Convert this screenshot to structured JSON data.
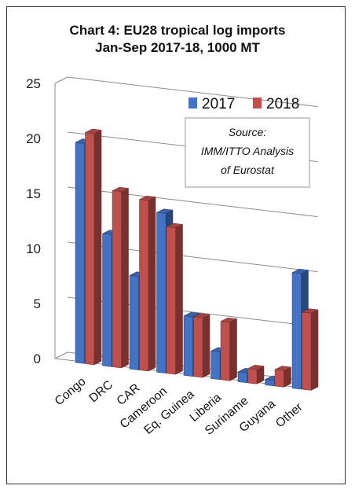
{
  "chart_data": {
    "type": "bar",
    "title_lines": [
      "Chart 4: EU28 tropical log imports",
      "Jan-Sep 2017-18, 1000 MT"
    ],
    "categories": [
      "Congo",
      "DRC",
      "CAR",
      "Cameroon",
      "Eq. Guinea",
      "Liberia",
      "Suriname",
      "Guyana",
      "Other"
    ],
    "series": [
      {
        "name": "2017",
        "values": [
          20.0,
          12.0,
          8.5,
          14.5,
          5.4,
          2.5,
          0.9,
          0.5,
          10.5
        ],
        "color": "#4472c4"
      },
      {
        "name": "2018",
        "values": [
          21.0,
          16.0,
          15.5,
          13.3,
          5.4,
          5.3,
          1.3,
          1.5,
          7.0
        ],
        "color": "#c0504d"
      }
    ],
    "yticks": [
      0,
      5,
      10,
      15,
      20,
      25
    ],
    "ylim": [
      0,
      25
    ],
    "grid": true,
    "legend_position": "top-right",
    "note_lines": [
      "Source:",
      "IMM/ITTO Analysis",
      "of Eurostat"
    ]
  }
}
